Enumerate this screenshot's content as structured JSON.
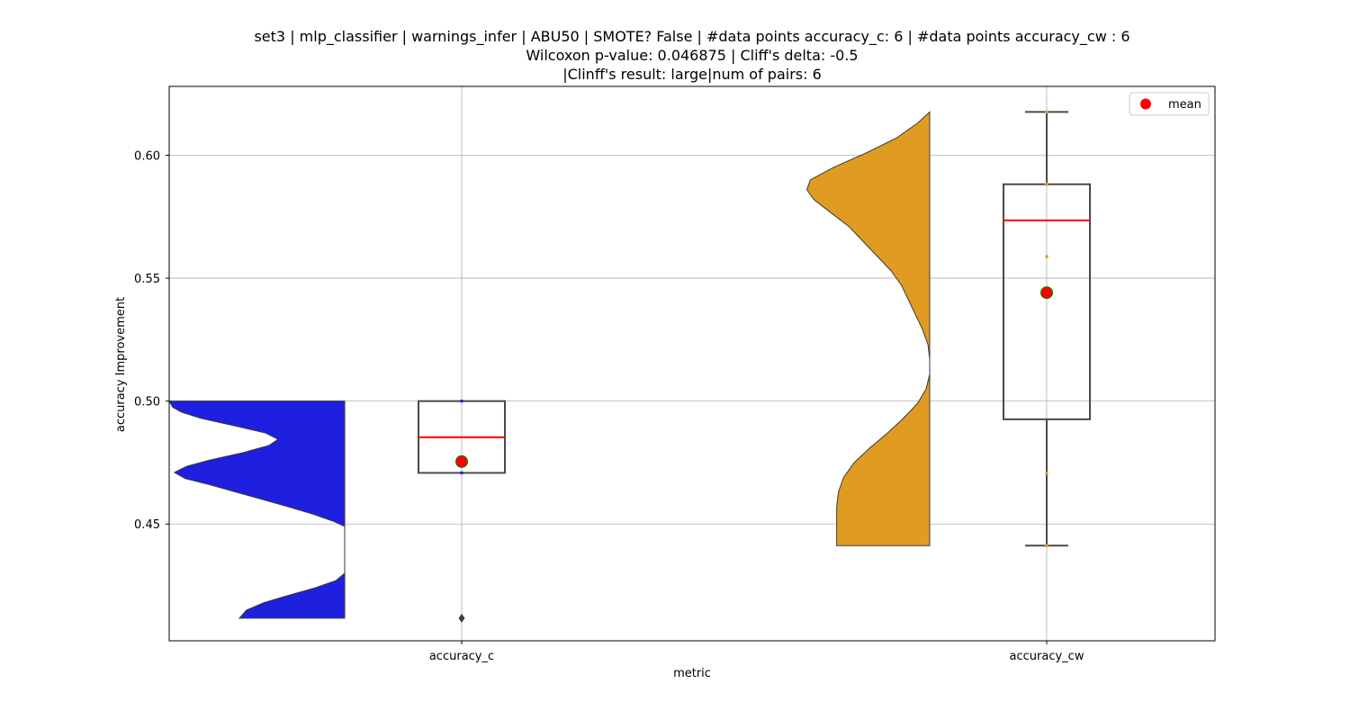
{
  "chart_data": {
    "type": "violin-box",
    "title_lines": [
      "set3 | mlp_classifier | warnings_infer | ABU50 | SMOTE? False | #data points accuracy_c: 6 | #data points accuracy_cw : 6",
      "Wilcoxon p-value: 0.046875 | Cliff's delta: -0.5",
      "|Clinff's result: large|num of pairs: 6"
    ],
    "xlabel": "metric",
    "ylabel": "accuracy Improvement",
    "ylim": [
      0.4025,
      0.628
    ],
    "yticks": [
      0.45,
      0.5,
      0.55,
      0.6
    ],
    "ytick_labels": [
      "0.45",
      "0.50",
      "0.55",
      "0.60"
    ],
    "categories": [
      "accuracy_c",
      "accuracy_cw"
    ],
    "grid": true,
    "legend": {
      "position": "top-right",
      "entries": [
        {
          "label": "mean",
          "color": "#ff0000"
        }
      ]
    },
    "series": [
      {
        "category": "accuracy_c",
        "violin_color": "#1f1fdf",
        "violin": {
          "min": 0.4117,
          "max": 0.5,
          "profile": [
            [
              0.5,
              1.0
            ],
            [
              0.4975,
              0.98
            ],
            [
              0.4955,
              0.93
            ],
            [
              0.493,
              0.82
            ],
            [
              0.49,
              0.63
            ],
            [
              0.487,
              0.45
            ],
            [
              0.4845,
              0.38
            ],
            [
              0.482,
              0.43
            ],
            [
              0.479,
              0.58
            ],
            [
              0.476,
              0.77
            ],
            [
              0.4735,
              0.9
            ],
            [
              0.471,
              0.97
            ],
            [
              0.4685,
              0.91
            ],
            [
              0.466,
              0.77
            ],
            [
              0.463,
              0.62
            ],
            [
              0.46,
              0.47
            ],
            [
              0.457,
              0.32
            ],
            [
              0.454,
              0.18
            ],
            [
              0.451,
              0.06
            ],
            [
              0.449,
              0.0
            ],
            [
              0.44,
              0.0
            ],
            [
              0.43,
              0.0
            ],
            [
              0.427,
              0.05
            ],
            [
              0.424,
              0.17
            ],
            [
              0.421,
              0.32
            ],
            [
              0.418,
              0.46
            ],
            [
              0.415,
              0.56
            ],
            [
              0.4117,
              0.6
            ]
          ]
        },
        "box": {
          "q1": 0.4708,
          "median": 0.4853,
          "q3": 0.5,
          "whisker_low": 0.4708,
          "whisker_high": 0.5
        },
        "mean": 0.4754,
        "outliers": [
          0.4117
        ],
        "points": [
          0.5,
          0.4708
        ]
      },
      {
        "category": "accuracy_cw",
        "violin_color": "#e09c22",
        "violin": {
          "min": 0.4412,
          "max": 0.6176,
          "profile": [
            [
              0.6176,
              0.0
            ],
            [
              0.613,
              0.07
            ],
            [
              0.607,
              0.19
            ],
            [
              0.601,
              0.36
            ],
            [
              0.595,
              0.55
            ],
            [
              0.59,
              0.68
            ],
            [
              0.586,
              0.7
            ],
            [
              0.582,
              0.66
            ],
            [
              0.577,
              0.57
            ],
            [
              0.571,
              0.46
            ],
            [
              0.565,
              0.38
            ],
            [
              0.559,
              0.3
            ],
            [
              0.553,
              0.22
            ],
            [
              0.547,
              0.16
            ],
            [
              0.541,
              0.12
            ],
            [
              0.535,
              0.08
            ],
            [
              0.529,
              0.04
            ],
            [
              0.523,
              0.01
            ],
            [
              0.517,
              0.0
            ],
            [
              0.511,
              0.0
            ],
            [
              0.505,
              0.02
            ],
            [
              0.499,
              0.07
            ],
            [
              0.493,
              0.15
            ],
            [
              0.487,
              0.24
            ],
            [
              0.481,
              0.34
            ],
            [
              0.475,
              0.43
            ],
            [
              0.469,
              0.49
            ],
            [
              0.463,
              0.52
            ],
            [
              0.457,
              0.53
            ],
            [
              0.451,
              0.53
            ],
            [
              0.446,
              0.53
            ],
            [
              0.4412,
              0.53
            ]
          ]
        },
        "box": {
          "q1": 0.4926,
          "median": 0.5735,
          "q3": 0.5882,
          "whisker_low": 0.4412,
          "whisker_high": 0.6176
        },
        "mean": 0.5441,
        "outliers": [],
        "points": [
          0.6176,
          0.5882,
          0.5588,
          0.4706,
          0.4412
        ]
      }
    ],
    "colors": {
      "box_edge": "#4a4a4a",
      "median": "#ff0000",
      "mean_fill": "#ff0000",
      "mean_edge": "#008000",
      "grid": "#b0b0b0"
    }
  }
}
